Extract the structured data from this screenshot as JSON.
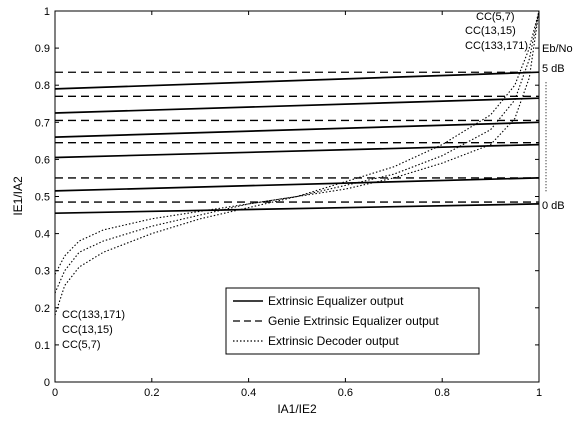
{
  "chart_data": {
    "type": "line",
    "title": "",
    "xlabel": "IA1/IE2",
    "ylabel": "IE1/IA2",
    "xlim": [
      0,
      1
    ],
    "ylim": [
      0,
      1
    ],
    "x_ticks": [
      "0",
      "0.2",
      "0.4",
      "0.6",
      "0.8",
      "1"
    ],
    "y_ticks": [
      "0",
      "0.1",
      "0.2",
      "0.3",
      "0.4",
      "0.5",
      "0.6",
      "0.7",
      "0.8",
      "0.9",
      "1"
    ],
    "grid": false,
    "legend_position": "bottom-right",
    "legend": [
      {
        "label": "Extrinsic Equalizer output",
        "style": "solid"
      },
      {
        "label": "Genie Extrinsic Equalizer output",
        "style": "dashed"
      },
      {
        "label": "Extrinsic Decoder output",
        "style": "dotted"
      }
    ],
    "equalizer_curves": [
      {
        "x": [
          0,
          1
        ],
        "y": [
          0.455,
          0.48
        ]
      },
      {
        "x": [
          0,
          1
        ],
        "y": [
          0.515,
          0.55
        ]
      },
      {
        "x": [
          0,
          1
        ],
        "y": [
          0.605,
          0.64
        ]
      },
      {
        "x": [
          0,
          1
        ],
        "y": [
          0.66,
          0.7
        ]
      },
      {
        "x": [
          0,
          1
        ],
        "y": [
          0.725,
          0.765
        ]
      },
      {
        "x": [
          0,
          1
        ],
        "y": [
          0.79,
          0.835
        ]
      }
    ],
    "genie_levels": [
      0.485,
      0.55,
      0.645,
      0.705,
      0.77,
      0.835
    ],
    "decoder_curves": [
      {
        "x": [
          0,
          0.02,
          0.05,
          0.1,
          0.2,
          0.3,
          0.4,
          0.5,
          0.6,
          0.7,
          0.8,
          0.9,
          0.95,
          0.98,
          1.0
        ],
        "y": [
          0.18,
          0.26,
          0.31,
          0.35,
          0.4,
          0.44,
          0.47,
          0.5,
          0.54,
          0.58,
          0.64,
          0.72,
          0.8,
          0.9,
          1.0
        ]
      },
      {
        "x": [
          0,
          0.02,
          0.05,
          0.1,
          0.2,
          0.3,
          0.4,
          0.5,
          0.6,
          0.7,
          0.8,
          0.9,
          0.95,
          0.98,
          1.0
        ],
        "y": [
          0.24,
          0.3,
          0.35,
          0.38,
          0.42,
          0.45,
          0.48,
          0.5,
          0.53,
          0.56,
          0.61,
          0.68,
          0.76,
          0.87,
          1.0
        ]
      },
      {
        "x": [
          0,
          0.02,
          0.05,
          0.1,
          0.2,
          0.3,
          0.4,
          0.5,
          0.6,
          0.7,
          0.8,
          0.9,
          0.95,
          0.98,
          1.0
        ],
        "y": [
          0.29,
          0.34,
          0.38,
          0.41,
          0.44,
          0.46,
          0.48,
          0.5,
          0.52,
          0.55,
          0.59,
          0.64,
          0.71,
          0.82,
          1.0
        ]
      }
    ],
    "annotations": {
      "codes_top": [
        "CC(5,7)",
        "CC(13,15)",
        "CC(133,171)"
      ],
      "codes_bottom": [
        "CC(133,171)",
        "CC(13,15)",
        "CC(5,7)"
      ],
      "ebno_label": "Eb/No",
      "ebno_high": "5 dB",
      "ebno_low": "0 dB"
    }
  }
}
